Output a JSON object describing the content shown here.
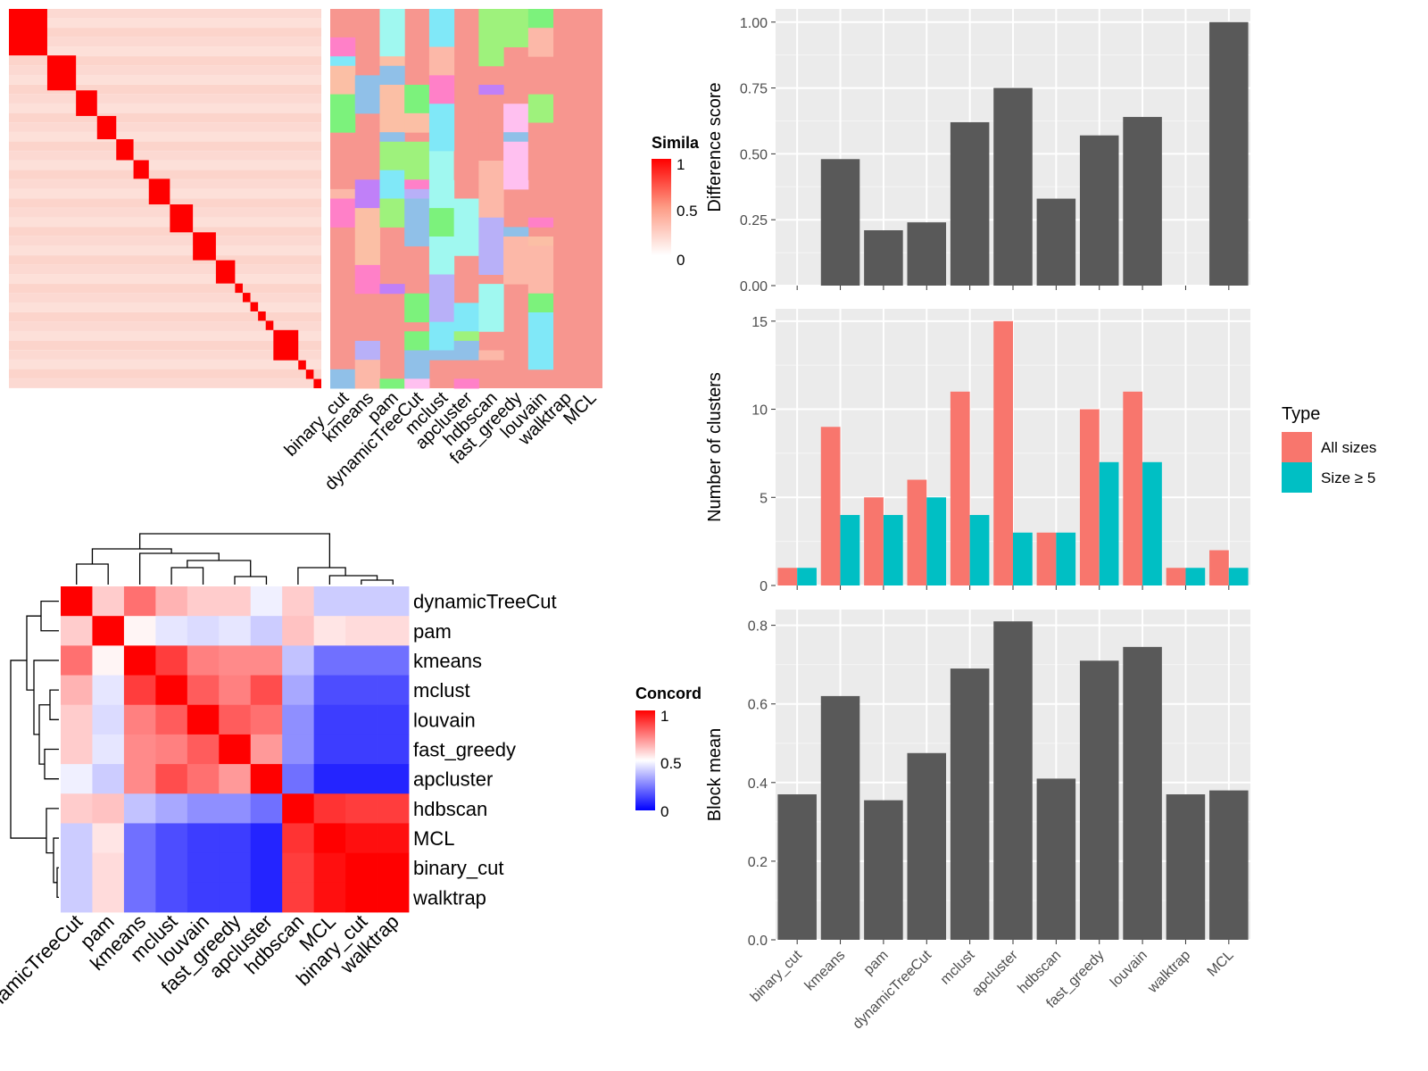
{
  "similarity_legend": {
    "title": "Simila",
    "ticks": [
      "1",
      "0.5",
      "0"
    ]
  },
  "concordance_legend": {
    "title": "Concord",
    "ticks": [
      "1",
      "0.5",
      "0"
    ]
  },
  "type_legend": {
    "title": "Type",
    "items": [
      "All sizes",
      "Size ≥ 5"
    ],
    "colors": [
      "#F8766D",
      "#00BFC4"
    ]
  },
  "method_labels_top": [
    "binary_cut",
    "kmeans",
    "pam",
    "dynamicTreeCut",
    "mclust",
    "apcluster",
    "hdbscan",
    "fast_greedy",
    "louvain",
    "walktrap",
    "MCL"
  ],
  "concordance_order": [
    "dynamicTreeCut",
    "pam",
    "kmeans",
    "mclust",
    "louvain",
    "fast_greedy",
    "apcluster",
    "hdbscan",
    "MCL",
    "binary_cut",
    "walktrap"
  ],
  "chart_data": [
    {
      "type": "heatmap",
      "name": "concordance",
      "rows": [
        "dynamicTreeCut",
        "pam",
        "kmeans",
        "mclust",
        "louvain",
        "fast_greedy",
        "apcluster",
        "hdbscan",
        "MCL",
        "binary_cut",
        "walktrap"
      ],
      "columns": [
        "dynamicTreeCut",
        "pam",
        "kmeans",
        "mclust",
        "louvain",
        "fast_greedy",
        "apcluster",
        "hdbscan",
        "MCL",
        "binary_cut",
        "walktrap"
      ],
      "scale": [
        0,
        1
      ],
      "values": [
        [
          1.0,
          0.6,
          0.78,
          0.65,
          0.6,
          0.6,
          0.47,
          0.6,
          0.4,
          0.4,
          0.4
        ],
        [
          0.6,
          1.0,
          0.52,
          0.45,
          0.43,
          0.45,
          0.4,
          0.62,
          0.55,
          0.57,
          0.57
        ],
        [
          0.78,
          0.52,
          1.0,
          0.88,
          0.75,
          0.73,
          0.73,
          0.38,
          0.22,
          0.22,
          0.22
        ],
        [
          0.65,
          0.45,
          0.88,
          1.0,
          0.82,
          0.75,
          0.85,
          0.33,
          0.15,
          0.15,
          0.15
        ],
        [
          0.6,
          0.43,
          0.75,
          0.82,
          1.0,
          0.82,
          0.78,
          0.28,
          0.12,
          0.12,
          0.12
        ],
        [
          0.6,
          0.45,
          0.73,
          0.75,
          0.82,
          1.0,
          0.7,
          0.28,
          0.12,
          0.12,
          0.12
        ],
        [
          0.47,
          0.4,
          0.73,
          0.85,
          0.78,
          0.7,
          1.0,
          0.22,
          0.07,
          0.07,
          0.07
        ],
        [
          0.6,
          0.62,
          0.38,
          0.33,
          0.28,
          0.28,
          0.22,
          1.0,
          0.9,
          0.88,
          0.88
        ],
        [
          0.4,
          0.55,
          0.22,
          0.15,
          0.12,
          0.12,
          0.07,
          0.9,
          1.0,
          0.97,
          0.97
        ],
        [
          0.4,
          0.57,
          0.22,
          0.15,
          0.12,
          0.12,
          0.07,
          0.88,
          0.97,
          1.0,
          1.0
        ],
        [
          0.4,
          0.57,
          0.22,
          0.15,
          0.12,
          0.12,
          0.07,
          0.88,
          0.97,
          1.0,
          1.0
        ]
      ]
    },
    {
      "type": "bar",
      "name": "difference",
      "categories": [
        "binary_cut",
        "kmeans",
        "pam",
        "dynamicTreeCut",
        "mclust",
        "apcluster",
        "hdbscan",
        "fast_greedy",
        "louvain",
        "walktrap",
        "MCL"
      ],
      "values": [
        0,
        0.48,
        0.21,
        0.24,
        0.62,
        0.75,
        0.33,
        0.57,
        0.64,
        0,
        1.0
      ],
      "ylabel": "Difference score",
      "ylim": [
        0,
        1.05
      ],
      "yticks": [
        "0.00",
        "0.25",
        "0.50",
        "0.75",
        "1.00"
      ]
    },
    {
      "type": "bar",
      "name": "clusters",
      "categories": [
        "binary_cut",
        "kmeans",
        "pam",
        "dynamicTreeCut",
        "mclust",
        "apcluster",
        "hdbscan",
        "fast_greedy",
        "louvain",
        "walktrap",
        "MCL"
      ],
      "series": [
        {
          "name": "All sizes",
          "values": [
            1,
            9,
            5,
            6,
            11,
            15,
            3,
            10,
            11,
            1,
            2
          ]
        },
        {
          "name": "Size ≥ 5",
          "values": [
            1,
            4,
            4,
            5,
            4,
            3,
            3,
            7,
            7,
            1,
            1
          ]
        }
      ],
      "ylabel": "Number of clusters",
      "ylim": [
        0,
        15.7
      ],
      "yticks": [
        "0",
        "5",
        "10",
        "15"
      ]
    },
    {
      "type": "bar",
      "name": "blockmean",
      "categories": [
        "binary_cut",
        "kmeans",
        "pam",
        "dynamicTreeCut",
        "mclust",
        "apcluster",
        "hdbscan",
        "fast_greedy",
        "louvain",
        "walktrap",
        "MCL"
      ],
      "values": [
        0.37,
        0.62,
        0.355,
        0.475,
        0.69,
        0.81,
        0.41,
        0.71,
        0.745,
        0.37,
        0.38
      ],
      "ylabel": "Block mean",
      "ylim": [
        0,
        0.84
      ],
      "yticks": [
        "0.0",
        "0.2",
        "0.4",
        "0.6",
        "0.8"
      ]
    }
  ]
}
